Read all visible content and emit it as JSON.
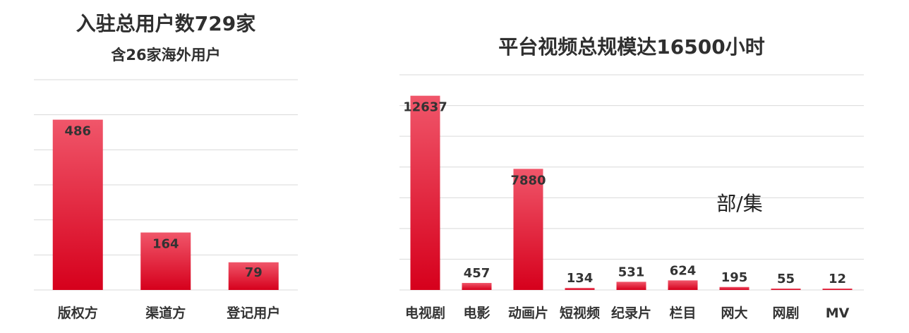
{
  "colors": {
    "bar_top": "#f0566a",
    "bar_bottom": "#d6001c",
    "grid": "#d9d9d9",
    "text": "#333333"
  },
  "chart_data": [
    {
      "type": "bar",
      "title": "入驻总用户数729家",
      "subtitle": "含26家海外用户",
      "categories": [
        "版权方",
        "渠道方",
        "登记用户"
      ],
      "values": [
        486,
        164,
        79
      ],
      "ylim": [
        0,
        600
      ],
      "grid": true,
      "data_labels": true
    },
    {
      "type": "bar",
      "title": "平台视频总规模达16500小时",
      "annotation": "部/集",
      "categories": [
        "电视剧",
        "电影",
        "动画片",
        "短视频",
        "纪录片",
        "栏目",
        "网大",
        "网剧",
        "MV"
      ],
      "values": [
        12637,
        457,
        7880,
        134,
        531,
        624,
        195,
        55,
        12
      ],
      "ylim": [
        0,
        14000
      ],
      "grid": true,
      "data_labels": true
    }
  ]
}
